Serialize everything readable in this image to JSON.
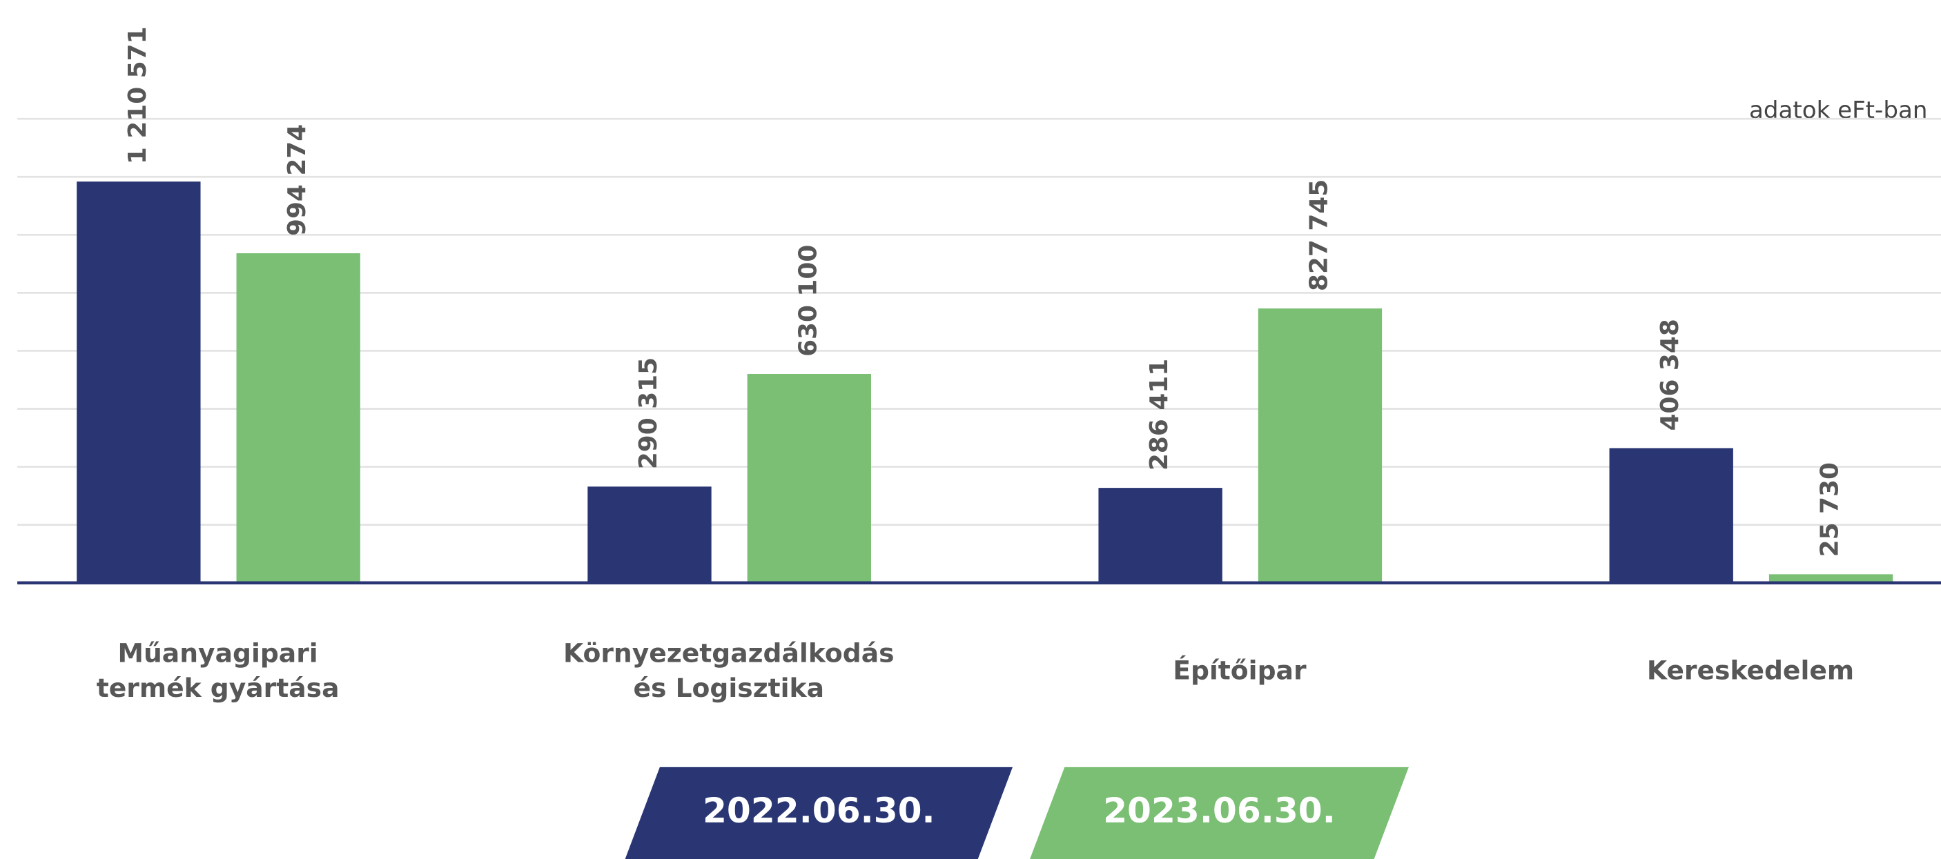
{
  "chart_data": {
    "type": "bar",
    "note": "adatok eFt-ban",
    "categories": [
      "Műanyagipari\ntermék gyártása",
      "Környezetgazdálkodás\nés Logisztika",
      "Építőipar",
      "Kereskedelem"
    ],
    "series": [
      {
        "name": "2022.06.30.",
        "color": "#293673",
        "values": [
          1210571,
          290315,
          286411,
          406348
        ],
        "value_labels": [
          "1 210 571",
          "290 315",
          "286 411",
          "406 348"
        ]
      },
      {
        "name": "2023.06.30.",
        "color": "#7abf74",
        "values": [
          994274,
          630100,
          827745,
          25730
        ],
        "value_labels": [
          "994 274",
          "630 100",
          "827 745",
          "25 730"
        ]
      }
    ],
    "ylim": [
      0,
      1400000
    ],
    "yticks": [
      0,
      175000,
      350000,
      525000,
      700000,
      875000,
      1050000,
      1225000,
      1400000
    ],
    "grid": true
  }
}
